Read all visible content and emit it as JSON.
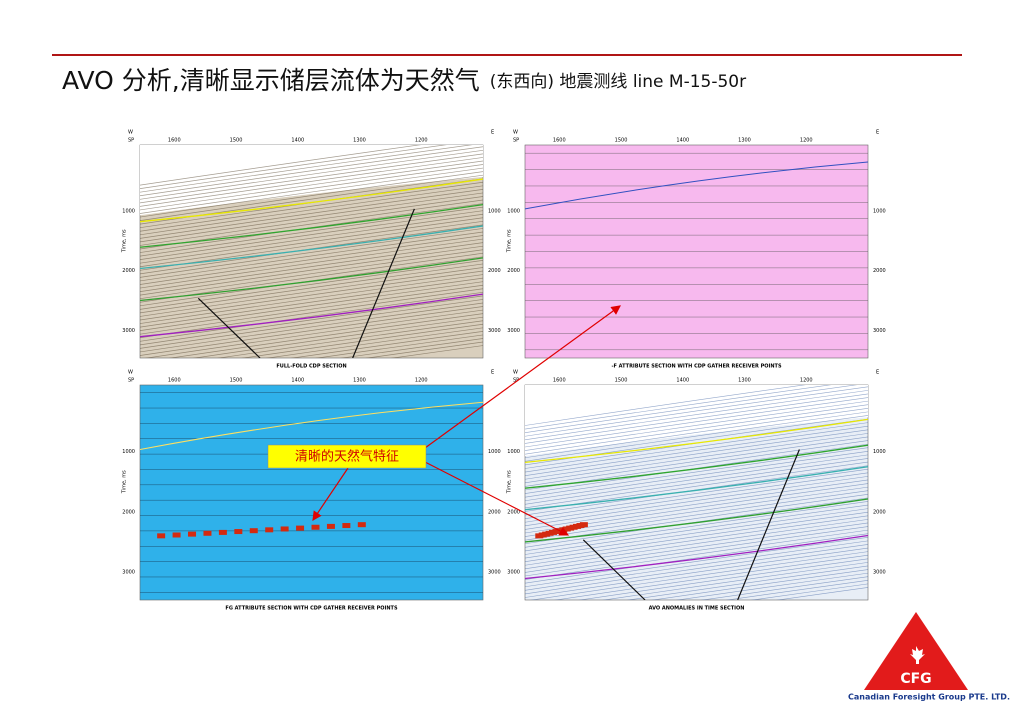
{
  "header": {
    "title": "AVO 分析,清晰显示储层流体为天然气",
    "subtitle": "(东西向) 地震测线 line M-15-50r"
  },
  "panels": [
    {
      "caption": "FULL-FOLD CDP SECTION",
      "top_ticks": [
        "1600",
        "1500",
        "1400",
        "1300",
        "1200"
      ],
      "left_ticks": [
        "1000",
        "2000",
        "3000"
      ],
      "axis_label": "Time, ms",
      "west": "W",
      "east": "E",
      "sp": "SP"
    },
    {
      "caption": "-F ATTRIBUTE SECTION WITH CDP GATHER RECEIVER POINTS",
      "top_ticks": [
        "1600",
        "1500",
        "1400",
        "1300",
        "1200"
      ],
      "left_ticks": [
        "1000",
        "2000",
        "3000"
      ],
      "axis_label": "Time, ms",
      "west": "W",
      "east": "E",
      "sp": "SP"
    },
    {
      "caption": "FG ATTRIBUTE SECTION WITH CDP GATHER RECEIVER POINTS",
      "top_ticks": [
        "1600",
        "1500",
        "1400",
        "1300",
        "1200"
      ],
      "left_ticks": [
        "1000",
        "2000",
        "3000"
      ],
      "axis_label": "Time, ms",
      "west": "W",
      "east": "E",
      "sp": "SP"
    },
    {
      "caption": "AVO ANOMALIES IN TIME SECTION",
      "top_ticks": [
        "1600",
        "1500",
        "1400",
        "1300",
        "1200"
      ],
      "left_ticks": [
        "1000",
        "2000",
        "3000"
      ],
      "axis_label": "Time, ms",
      "west": "W",
      "east": "E",
      "sp": "SP"
    }
  ],
  "callout": "清晰的天然气特征",
  "logo": {
    "mark": "CFG",
    "company": "Canadian Foresight Group PTE. LTD."
  }
}
